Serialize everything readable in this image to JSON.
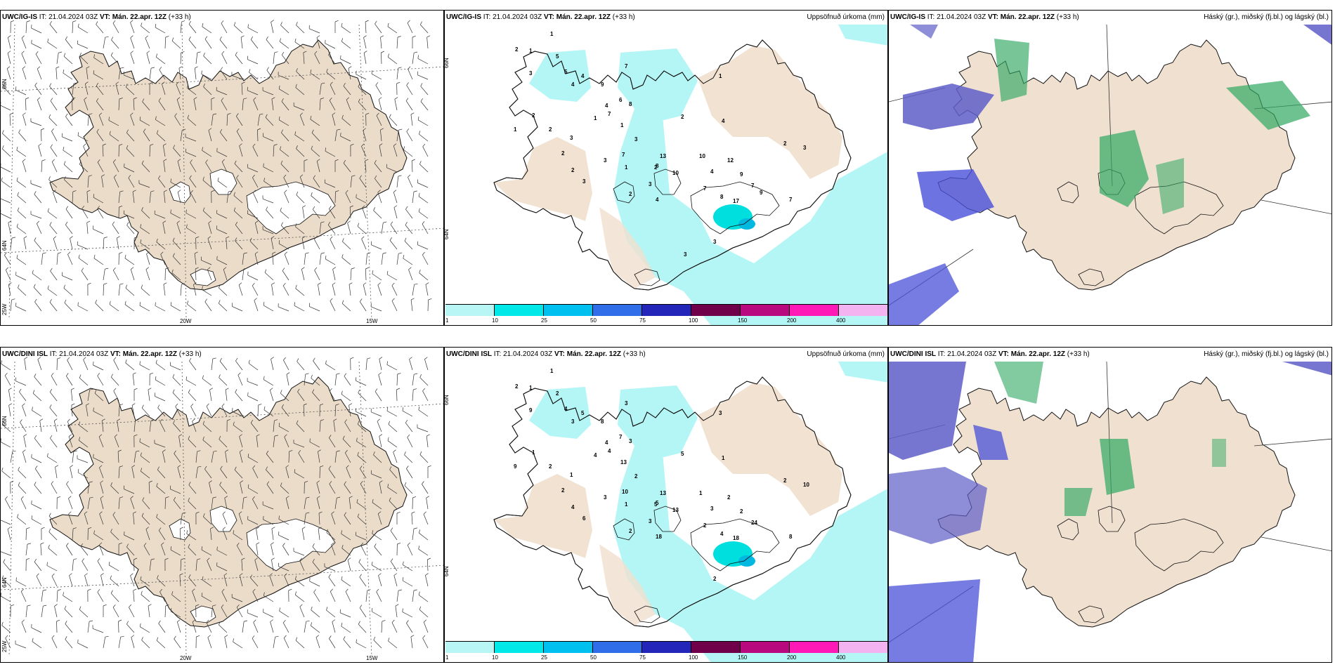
{
  "rows": [
    {
      "model": "UWC/IG-IS",
      "it_label": "IT:",
      "it_value": "21.04.2024 03Z",
      "vt_label": "VT:",
      "vt_value": "Mán. 22.apr. 12Z",
      "lead": "(+33 h)"
    },
    {
      "model": "UWC/DINI ISL",
      "it_label": "IT:",
      "it_value": "21.04.2024 03Z",
      "vt_label": "VT:",
      "vt_value": "Mán. 22.apr. 12Z",
      "lead": "(+33 h)"
    }
  ],
  "precip_title": "Uppsöfnuð úrkoma (mm)",
  "cloud_title": "Háský (gr.), miðský (fj.bl.) og lágský (bl.)",
  "lon_labels": [
    "20W",
    "15W"
  ],
  "lat_labels": [
    "66N",
    "64N",
    "25W"
  ],
  "precip_lat_labels": [
    "66N",
    "64N"
  ],
  "colorbar": {
    "ticks": [
      "1",
      "10",
      "25",
      "50",
      "75",
      "100",
      "150",
      "200",
      "400"
    ],
    "colors": [
      "#b8f6f6",
      "#00e8e8",
      "#00c0f0",
      "#2f6ee8",
      "#2326b8",
      "#70004a",
      "#b80a7e",
      "#ff1ab8",
      "#f3b2f0"
    ]
  },
  "colors": {
    "land": "#f0e0d0",
    "land_wind": "#ebdcc9",
    "precip_light": "#b4f6f6",
    "precip_mid": "#00dede",
    "cloud_high": "#2fa861",
    "cloud_mid": "#5e5ec8",
    "cloud_low": "#4850d8"
  },
  "precip_values": {
    "top": [
      "1",
      "2",
      "1",
      "5",
      "5",
      "4",
      "7",
      "4",
      "6",
      "8",
      "7",
      "3",
      "4",
      "9",
      "2",
      "2",
      "3",
      "3",
      "2",
      "7",
      "13",
      "1",
      "2",
      "3",
      "4",
      "2",
      "8",
      "10",
      "4",
      "9",
      "7",
      "17",
      "2",
      "3",
      "7",
      "3",
      "1",
      "2",
      "3",
      "1",
      "1",
      "1",
      "2",
      "4",
      "3",
      "10",
      "12",
      "7",
      "8",
      "9",
      "3"
    ],
    "bottom": [
      "1",
      "2",
      "1",
      "2",
      "4",
      "5",
      "3",
      "4",
      "7",
      "3",
      "4",
      "9",
      "3",
      "8",
      "1",
      "2",
      "1",
      "3",
      "2",
      "10",
      "13",
      "1",
      "5",
      "3",
      "18",
      "2",
      "5",
      "13",
      "3",
      "2",
      "24",
      "18",
      "2",
      "10",
      "8",
      "2",
      "4",
      "4",
      "6",
      "9",
      "13",
      "3",
      "5",
      "1",
      "2",
      "1",
      "2",
      "2",
      "4"
    ]
  }
}
